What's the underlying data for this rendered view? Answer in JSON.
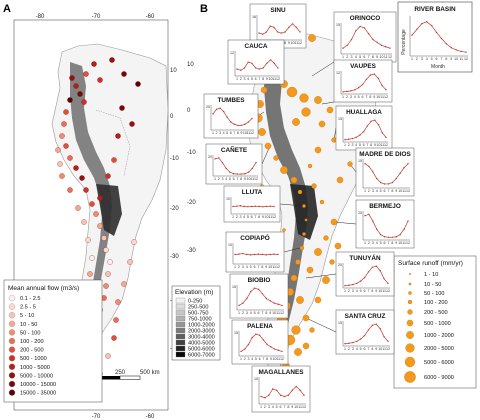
{
  "panels": {
    "a": {
      "letter": "A"
    },
    "b": {
      "letter": "B"
    }
  },
  "map_a": {
    "lon_ticks": [
      "-80",
      "-70",
      "-60"
    ],
    "lon_ticks_bottom": [
      "-70",
      "-60"
    ],
    "lat_ticks": [
      "10",
      "0",
      "-10",
      "-20",
      "-30",
      "-40",
      "-50"
    ],
    "scalebar": {
      "start": "0",
      "mid": "250",
      "end": "500 km"
    },
    "legend": {
      "title": "Mean annual flow (m3/s)",
      "items": [
        {
          "label": "0.1 - 2.5",
          "color": "#fdeee9"
        },
        {
          "label": "2.5 - 5",
          "color": "#fbd9cf"
        },
        {
          "label": "5 - 10",
          "color": "#f8c3b3"
        },
        {
          "label": "10 - 50",
          "color": "#f4a891"
        },
        {
          "label": "50 - 100",
          "color": "#ef8d72"
        },
        {
          "label": "100 - 200",
          "color": "#e96f56"
        },
        {
          "label": "200 - 500",
          "color": "#dd523e"
        },
        {
          "label": "500 - 1000",
          "color": "#c9342a"
        },
        {
          "label": "1000 - 5000",
          "color": "#b0201d"
        },
        {
          "label": "5000 - 10000",
          "color": "#921213"
        },
        {
          "label": "10000 - 15000",
          "color": "#75080c"
        },
        {
          "label": "15000 - 35000",
          "color": "#5a0306"
        }
      ]
    }
  },
  "map_b": {
    "lat_ticks": [
      "10",
      "0",
      "-10",
      "-20",
      "-30",
      "-40",
      "-50"
    ],
    "elevation_legend": {
      "title": "Elevation (m)",
      "items": [
        {
          "label": "0-250",
          "color": "#f2f2f2"
        },
        {
          "label": "250-500",
          "color": "#dcdcdc"
        },
        {
          "label": "500-750",
          "color": "#c6c6c6"
        },
        {
          "label": "750-1000",
          "color": "#b0b0b0"
        },
        {
          "label": "1000-2000",
          "color": "#969696"
        },
        {
          "label": "2000-3000",
          "color": "#7a7a7a"
        },
        {
          "label": "3000-4000",
          "color": "#5e5e5e"
        },
        {
          "label": "4000-5000",
          "color": "#424242"
        },
        {
          "label": "5000-6000",
          "color": "#262626"
        },
        {
          "label": "6000-7000",
          "color": "#0a0a0a"
        }
      ]
    },
    "runoff_legend": {
      "title": "Surface runoff (mm/yr)",
      "color": "#f39a1e",
      "items": [
        {
          "label": "1 - 10"
        },
        {
          "label": "10 - 50"
        },
        {
          "label": "50 - 100"
        },
        {
          "label": "100 - 200"
        },
        {
          "label": "200 - 500"
        },
        {
          "label": "500 - 1000"
        },
        {
          "label": "1000 - 2000"
        },
        {
          "label": "2000 - 5000"
        },
        {
          "label": "5000 - 6000"
        },
        {
          "label": "6000 - 9000"
        }
      ]
    },
    "example_inset": {
      "title": "RIVER BASIN",
      "xlabel": "Month",
      "ylabel": "Percentage"
    },
    "month_ticks": [
      "1",
      "2",
      "3",
      "4",
      "5",
      "6",
      "7",
      "8",
      "9",
      "10",
      "11",
      "12"
    ],
    "basins": [
      {
        "name": "SINU",
        "ymax": "16"
      },
      {
        "name": "ORINOCO",
        "ymax": "15"
      },
      {
        "name": "CAUCA",
        "ymax": "12"
      },
      {
        "name": "VAUPES",
        "ymax": "12"
      },
      {
        "name": "TUMBES",
        "ymax": "20"
      },
      {
        "name": "HUALLAGA",
        "ymax": "15"
      },
      {
        "name": "CAÑETE",
        "ymax": "20"
      },
      {
        "name": "MADRE DE DIOS",
        "ymax": "15"
      },
      {
        "name": "LLUTA",
        "ymax": "10"
      },
      {
        "name": "BERMEJO",
        "ymax": "20"
      },
      {
        "name": "COPIAPÓ",
        "ymax": "10"
      },
      {
        "name": "TUNUYÁN",
        "ymax": "20"
      },
      {
        "name": "BIOBIO",
        "ymax": "15"
      },
      {
        "name": "SANTA CRUZ",
        "ymax": "15"
      },
      {
        "name": "PALENA",
        "ymax": "15"
      },
      {
        "name": "MAGALLANES",
        "ymax": "15"
      }
    ]
  },
  "colors": {
    "hydrograph": "#c0392b",
    "dot_orange": "#f39a1e",
    "dot_red_dark": "#8b0a10"
  }
}
